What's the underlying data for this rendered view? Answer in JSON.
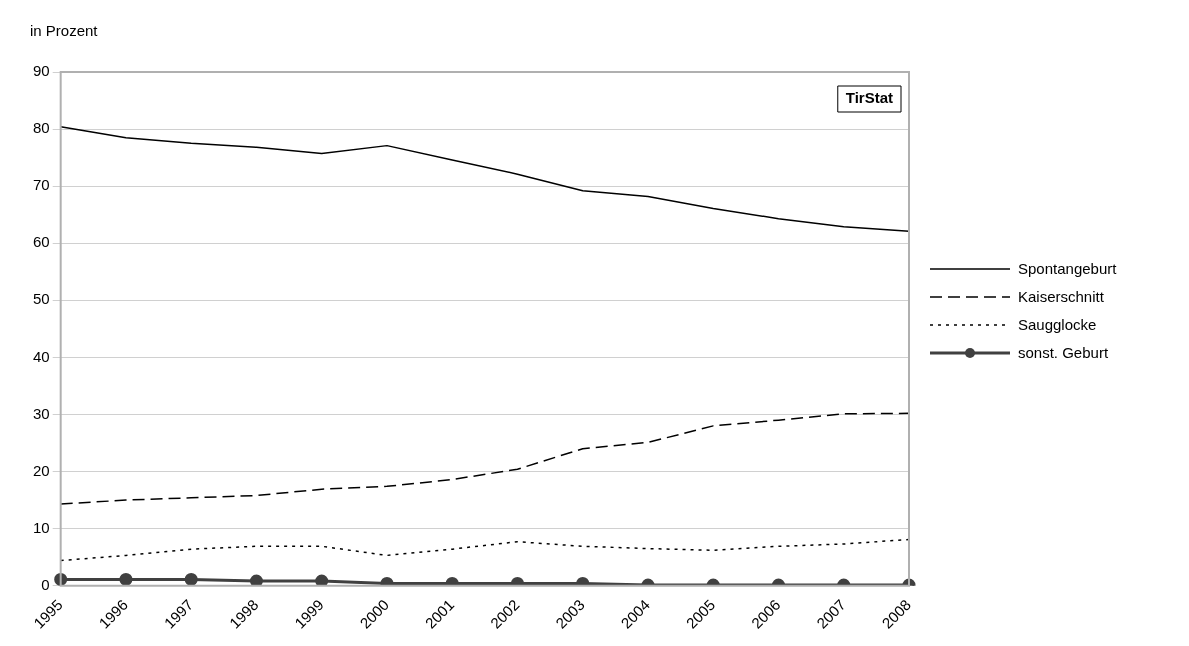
{
  "chart_data": {
    "type": "line",
    "ylabel": "in Prozent",
    "categories": [
      "1995",
      "1996",
      "1997",
      "1998",
      "1999",
      "2000",
      "2001",
      "2002",
      "2003",
      "2004",
      "2005",
      "2006",
      "2007",
      "2008"
    ],
    "series": [
      {
        "name": "Spontangeburt",
        "color": "#000000",
        "line_style": "solid",
        "marker": "none",
        "values": [
          80.4,
          78.5,
          77.5,
          76.8,
          75.7,
          77.1,
          74.6,
          72.1,
          69.2,
          68.2,
          66.1,
          64.3,
          62.9,
          62.1
        ]
      },
      {
        "name": "Kaiserschnitt",
        "color": "#000000",
        "line_style": "dashed",
        "marker": "none",
        "values": [
          14.3,
          15.0,
          15.4,
          15.8,
          16.9,
          17.4,
          18.6,
          20.4,
          24.0,
          25.1,
          28.0,
          29.0,
          30.1,
          30.2
        ]
      },
      {
        "name": "Saugglocke",
        "color": "#000000",
        "line_style": "dotted",
        "marker": "none",
        "values": [
          4.4,
          5.3,
          6.4,
          6.9,
          6.9,
          5.3,
          6.4,
          7.7,
          6.9,
          6.5,
          6.2,
          6.9,
          7.3,
          8.1
        ]
      },
      {
        "name": "sonst. Geburt",
        "color": "#404040",
        "line_style": "solid",
        "marker": "circle",
        "values": [
          1.1,
          1.1,
          1.1,
          0.8,
          0.8,
          0.4,
          0.4,
          0.4,
          0.4,
          0.1,
          0.1,
          0.1,
          0.1,
          0.1
        ]
      }
    ],
    "ylim": [
      0,
      90
    ],
    "yticks": [
      0,
      10,
      20,
      30,
      40,
      50,
      60,
      70,
      80,
      90
    ],
    "grid": "y",
    "legend": "right",
    "annotations": [
      "TirStat"
    ]
  }
}
